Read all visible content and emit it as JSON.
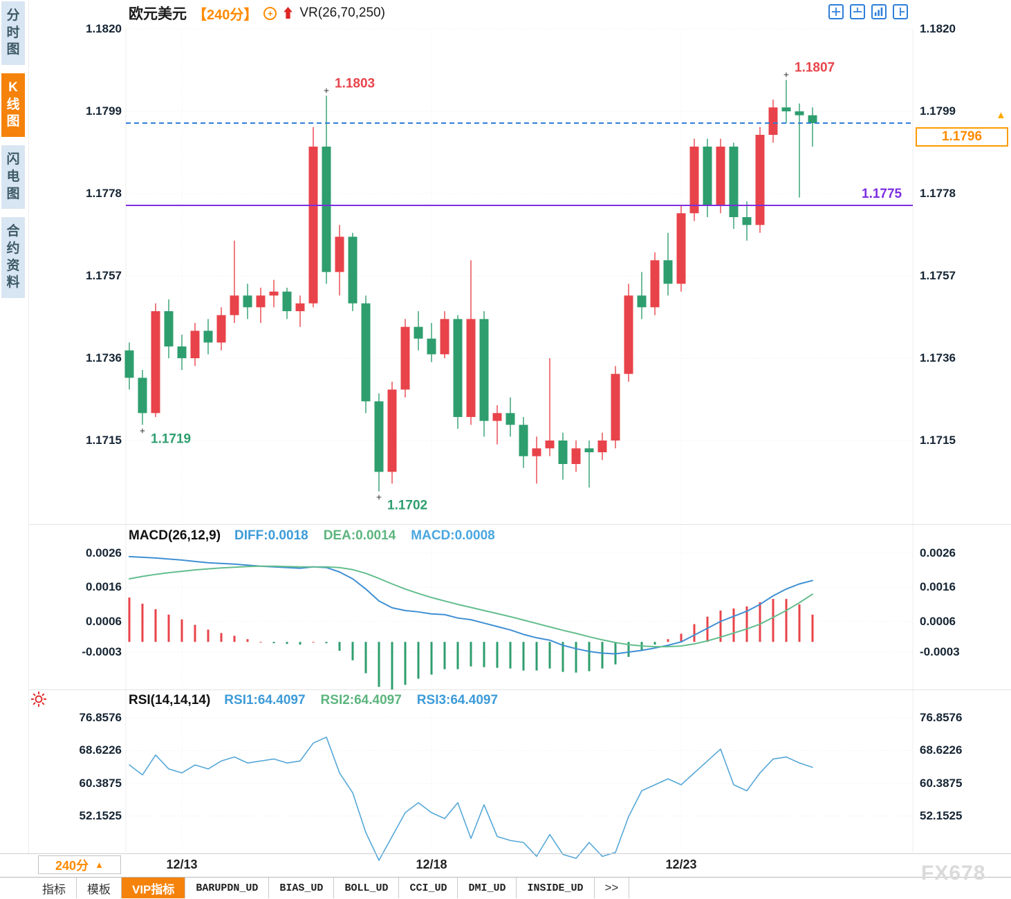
{
  "header": {
    "symbol": "欧元美元",
    "period": "【240分】",
    "indicator": "VR(26,70,250)"
  },
  "sidebar": {
    "items": [
      {
        "label": "分时图",
        "active": false
      },
      {
        "label": "K线图",
        "active": true
      },
      {
        "label": "闪电图",
        "active": false
      },
      {
        "label": "合约资料",
        "active": false
      }
    ]
  },
  "layout_icons": [
    "layout-grid-icon",
    "layout-horizontal-split-icon",
    "layout-chart-panel-icon",
    "layout-vertical-split-icon"
  ],
  "price_panel": {
    "y_ticks": [
      "1.1820",
      "1.1799",
      "1.1778",
      "1.1757",
      "1.1736",
      "1.1715"
    ],
    "current": "1.1796"
  },
  "macd_panel": {
    "title": "MACD(26,12,9)",
    "labels": [
      {
        "text": "DIFF:0.0018",
        "color": "#3d9bd8"
      },
      {
        "text": "DEA:0.0014",
        "color": "#5cb57e"
      },
      {
        "text": "MACD:0.0008",
        "color": "#4aa6e0"
      }
    ],
    "y_ticks": [
      "0.0026",
      "0.0016",
      "0.0006",
      "-0.0003"
    ]
  },
  "rsi_panel": {
    "title": "RSI(14,14,14)",
    "labels": [
      {
        "text": "RSI1:64.4097",
        "color": "#3d9bd8"
      },
      {
        "text": "RSI2:64.4097",
        "color": "#5cb57e"
      },
      {
        "text": "RSI3:64.4097",
        "color": "#3d9bd8"
      }
    ],
    "y_ticks": [
      "76.8576",
      "68.6226",
      "60.3875",
      "52.1525"
    ]
  },
  "x_axis": {
    "labels": [
      "12/13",
      "12/18",
      "12/23"
    ],
    "tick_indices": [
      4,
      23,
      42
    ],
    "period_box": "240分"
  },
  "bottom_tabs": [
    {
      "label": "指标",
      "active": false
    },
    {
      "label": "模板",
      "active": false
    },
    {
      "label": "VIP指标",
      "active": true
    },
    {
      "label": "BARUPDN_UD",
      "active": false
    },
    {
      "label": "BIAS_UD",
      "active": false
    },
    {
      "label": "BOLL_UD",
      "active": false
    },
    {
      "label": "CCI_UD",
      "active": false
    },
    {
      "label": "DMI_UD",
      "active": false
    },
    {
      "label": "INSIDE_UD",
      "active": false
    },
    {
      "label": ">>",
      "active": false
    }
  ],
  "watermark": "FX678",
  "colors": {
    "up": "#e8434a",
    "down": "#2e9e6e",
    "diff_line": "#3f8fd4",
    "dea_line": "#63bd8d",
    "rsi_line": "#55a7d8",
    "dashed_level": "#2f7ed8",
    "support_level": "#7d2ce0",
    "accent_orange": "#ff8a00"
  },
  "chart_data": [
    {
      "type": "candlestick",
      "title": "欧元美元 240分",
      "ylim": [
        1.1695,
        1.1825
      ],
      "ohlc": [
        [
          1.1738,
          1.174,
          1.1728,
          1.1731
        ],
        [
          1.1731,
          1.1733,
          1.1719,
          1.1722
        ],
        [
          1.1722,
          1.175,
          1.1721,
          1.1748
        ],
        [
          1.1748,
          1.1751,
          1.1736,
          1.1739
        ],
        [
          1.1739,
          1.1742,
          1.1733,
          1.1736
        ],
        [
          1.1736,
          1.1745,
          1.1734,
          1.1743
        ],
        [
          1.1743,
          1.1746,
          1.1737,
          1.174
        ],
        [
          1.174,
          1.1749,
          1.1738,
          1.1747
        ],
        [
          1.1747,
          1.1766,
          1.1745,
          1.1752
        ],
        [
          1.1752,
          1.1755,
          1.1746,
          1.1749
        ],
        [
          1.1749,
          1.1754,
          1.1745,
          1.1752
        ],
        [
          1.1752,
          1.1756,
          1.1749,
          1.1753
        ],
        [
          1.1753,
          1.1754,
          1.1746,
          1.1748
        ],
        [
          1.1748,
          1.1752,
          1.1744,
          1.175
        ],
        [
          1.175,
          1.1795,
          1.1749,
          1.179
        ],
        [
          1.179,
          1.1803,
          1.1755,
          1.1758
        ],
        [
          1.1758,
          1.177,
          1.1752,
          1.1767
        ],
        [
          1.1767,
          1.1768,
          1.1748,
          1.175
        ],
        [
          1.175,
          1.1752,
          1.1722,
          1.1725
        ],
        [
          1.1725,
          1.1727,
          1.1702,
          1.1707
        ],
        [
          1.1707,
          1.173,
          1.1704,
          1.1728
        ],
        [
          1.1728,
          1.1746,
          1.1726,
          1.1744
        ],
        [
          1.1744,
          1.1748,
          1.1738,
          1.1741
        ],
        [
          1.1741,
          1.1745,
          1.1735,
          1.1737
        ],
        [
          1.1737,
          1.1748,
          1.1736,
          1.1746
        ],
        [
          1.1746,
          1.1747,
          1.1718,
          1.1721
        ],
        [
          1.1721,
          1.1761,
          1.1719,
          1.1746
        ],
        [
          1.1746,
          1.1748,
          1.1716,
          1.172
        ],
        [
          1.172,
          1.1724,
          1.1714,
          1.1722
        ],
        [
          1.1722,
          1.1726,
          1.1716,
          1.1719
        ],
        [
          1.1719,
          1.1721,
          1.1708,
          1.1711
        ],
        [
          1.1711,
          1.1716,
          1.1704,
          1.1713
        ],
        [
          1.1713,
          1.1736,
          1.1711,
          1.1715
        ],
        [
          1.1715,
          1.1717,
          1.1705,
          1.1709
        ],
        [
          1.1709,
          1.1715,
          1.1707,
          1.1713
        ],
        [
          1.1713,
          1.1715,
          1.1703,
          1.1712
        ],
        [
          1.1712,
          1.1717,
          1.171,
          1.1715
        ],
        [
          1.1715,
          1.1734,
          1.1713,
          1.1732
        ],
        [
          1.1732,
          1.1755,
          1.173,
          1.1752
        ],
        [
          1.1752,
          1.1758,
          1.1746,
          1.1749
        ],
        [
          1.1749,
          1.1763,
          1.1747,
          1.1761
        ],
        [
          1.1761,
          1.1768,
          1.1752,
          1.1755
        ],
        [
          1.1755,
          1.1775,
          1.1753,
          1.1773
        ],
        [
          1.1773,
          1.1792,
          1.1771,
          1.179
        ],
        [
          1.179,
          1.1792,
          1.1772,
          1.1775
        ],
        [
          1.1775,
          1.1792,
          1.1773,
          1.179
        ],
        [
          1.179,
          1.1791,
          1.1769,
          1.1772
        ],
        [
          1.1772,
          1.1776,
          1.1766,
          1.177
        ],
        [
          1.177,
          1.1795,
          1.1768,
          1.1793
        ],
        [
          1.1793,
          1.1802,
          1.1791,
          1.18
        ],
        [
          1.18,
          1.1807,
          1.1796,
          1.1799
        ],
        [
          1.1799,
          1.1801,
          1.1777,
          1.1798
        ],
        [
          1.1798,
          1.18,
          1.179,
          1.1796
        ]
      ],
      "annotations": [
        {
          "text": "1.1719",
          "index": 1,
          "price": 1.1719,
          "type": "low"
        },
        {
          "text": "1.1803",
          "index": 15,
          "price": 1.1803,
          "type": "high"
        },
        {
          "text": "1.1702",
          "index": 19,
          "price": 1.1702,
          "type": "low"
        },
        {
          "text": "1.1807",
          "index": 50,
          "price": 1.1807,
          "type": "high"
        }
      ],
      "levels": [
        {
          "value": 1.1796,
          "style": "dashed",
          "color": "#2f7ed8",
          "label": ""
        },
        {
          "value": 1.1775,
          "style": "solid",
          "color": "#7d2ce0",
          "label": "1.1775"
        }
      ]
    },
    {
      "type": "macd",
      "title": "MACD(26,12,9)",
      "ylim": [
        -0.0013,
        0.003
      ],
      "diff": [
        0.0025,
        0.00248,
        0.00246,
        0.00243,
        0.0024,
        0.00236,
        0.00232,
        0.0023,
        0.00228,
        0.00225,
        0.00222,
        0.0022,
        0.00218,
        0.00216,
        0.0022,
        0.00218,
        0.00205,
        0.00185,
        0.00155,
        0.0012,
        0.001,
        0.00092,
        0.00088,
        0.00082,
        0.0008,
        0.0007,
        0.00065,
        0.00055,
        0.00045,
        0.00035,
        0.00022,
        0.00012,
        5e-05,
        -0.0001,
        -0.0002,
        -0.00028,
        -0.00033,
        -0.00035,
        -0.0003,
        -0.00025,
        -0.00018,
        -0.0001,
        0.0,
        0.0002,
        0.0004,
        0.0006,
        0.00075,
        0.0009,
        0.0011,
        0.00135,
        0.00155,
        0.0017,
        0.0018
      ],
      "dea": [
        0.00185,
        0.00192,
        0.00198,
        0.00203,
        0.00207,
        0.00211,
        0.00214,
        0.00217,
        0.00219,
        0.00221,
        0.00222,
        0.00222,
        0.00221,
        0.0022,
        0.0022,
        0.0022,
        0.00218,
        0.00212,
        0.00201,
        0.00186,
        0.0017,
        0.00155,
        0.00142,
        0.0013,
        0.0012,
        0.0011,
        0.00101,
        0.00092,
        0.00083,
        0.00074,
        0.00064,
        0.00054,
        0.00044,
        0.00034,
        0.00025,
        0.00015,
        6e-05,
        -2e-05,
        -8e-05,
        -0.00012,
        -0.00014,
        -0.00014,
        -0.00012,
        -6e-05,
        3e-05,
        0.00014,
        0.00026,
        0.00038,
        0.00052,
        0.00072,
        0.00092,
        0.00115,
        0.0014
      ]
    },
    {
      "type": "line",
      "title": "RSI(14,14,14)",
      "ylim": [
        38,
        80
      ],
      "values": [
        65.0,
        62.5,
        67.5,
        64.0,
        63.0,
        65.0,
        64.0,
        66.0,
        67.0,
        65.5,
        66.0,
        66.5,
        65.5,
        66.0,
        70.5,
        72.0,
        63.0,
        58.0,
        48.0,
        41.0,
        47.0,
        53.0,
        55.5,
        53.0,
        51.5,
        55.5,
        46.5,
        55.0,
        47.0,
        46.0,
        45.5,
        42.0,
        47.5,
        42.5,
        41.5,
        45.5,
        42.0,
        43.0,
        52.0,
        58.5,
        60.0,
        61.5,
        60.0,
        63.0,
        66.0,
        69.0,
        60.0,
        58.5,
        63.0,
        66.5,
        67.0,
        65.5,
        64.4
      ]
    }
  ]
}
